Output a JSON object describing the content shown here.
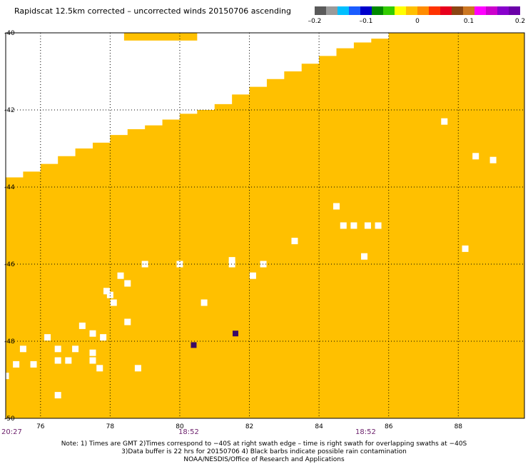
{
  "title": "Rapidscat 12.5km corrected – uncorrected winds 20150706 ascending",
  "colorbar": {
    "swatches": [
      "#5a5a5a",
      "#9a9a9a",
      "#00bfff",
      "#1a5cff",
      "#0000cc",
      "#008800",
      "#33cc00",
      "#ffff00",
      "#ffc000",
      "#ff8c00",
      "#ff3300",
      "#e8001c",
      "#8b4513",
      "#cc7722",
      "#ff00ff",
      "#cc00cc",
      "#8800cc",
      "#6a00a8"
    ],
    "labels": [
      "–0.2",
      "–0.1",
      "0",
      "0.1",
      "0.2"
    ]
  },
  "colors": {
    "land_mask": "#ffffff",
    "wind_fill": "#ffc000",
    "grid": "#000000",
    "anomaly": "#3a0a66"
  },
  "axes": {
    "x_ticks": [
      "76",
      "78",
      "80",
      "82",
      "84",
      "86",
      "88"
    ],
    "y_ticks": [
      "-40",
      "-42",
      "-44",
      "-46",
      "-48",
      "-50"
    ],
    "x_range": [
      75.0,
      89.9
    ],
    "y_range": [
      -50,
      -40
    ],
    "grid": true
  },
  "map_data": {
    "swath_edge_deg": [
      {
        "lon": 75.0,
        "lat": -43.75
      },
      {
        "lon": 75.5,
        "lat": -43.6
      },
      {
        "lon": 76.0,
        "lat": -43.4
      },
      {
        "lon": 76.5,
        "lat": -43.2
      },
      {
        "lon": 77.0,
        "lat": -43.0
      },
      {
        "lon": 77.5,
        "lat": -42.85
      },
      {
        "lon": 78.0,
        "lat": -42.65
      },
      {
        "lon": 78.5,
        "lat": -42.5
      },
      {
        "lon": 79.0,
        "lat": -42.4
      },
      {
        "lon": 79.5,
        "lat": -42.25
      },
      {
        "lon": 80.0,
        "lat": -42.1
      },
      {
        "lon": 80.5,
        "lat": -42.0
      },
      {
        "lon": 81.0,
        "lat": -41.85
      },
      {
        "lon": 81.5,
        "lat": -41.6
      },
      {
        "lon": 82.0,
        "lat": -41.4
      },
      {
        "lon": 82.5,
        "lat": -41.2
      },
      {
        "lon": 83.0,
        "lat": -41.0
      },
      {
        "lon": 83.5,
        "lat": -40.8
      },
      {
        "lon": 84.0,
        "lat": -40.6
      },
      {
        "lon": 84.5,
        "lat": -40.4
      },
      {
        "lon": 85.0,
        "lat": -40.25
      },
      {
        "lon": 85.5,
        "lat": -40.15
      },
      {
        "lon": 86.0,
        "lat": -40.0
      }
    ],
    "top_strip_lon": [
      78.4,
      80.5
    ],
    "rain_flag_cells": [
      [
        88.5,
        -43.2
      ],
      [
        89.0,
        -43.3
      ],
      [
        87.6,
        -42.3
      ],
      [
        84.5,
        -44.5
      ],
      [
        84.7,
        -45.0
      ],
      [
        85.0,
        -45.0
      ],
      [
        85.4,
        -45.0
      ],
      [
        85.7,
        -45.0
      ],
      [
        85.3,
        -45.8
      ],
      [
        83.3,
        -45.4
      ],
      [
        88.2,
        -45.6
      ],
      [
        79.0,
        -46.0
      ],
      [
        80.0,
        -46.0
      ],
      [
        81.5,
        -45.9
      ],
      [
        81.5,
        -46.0
      ],
      [
        82.4,
        -46.0
      ],
      [
        82.1,
        -46.3
      ],
      [
        78.3,
        -46.3
      ],
      [
        78.5,
        -46.5
      ],
      [
        78.0,
        -46.8
      ],
      [
        78.1,
        -47.0
      ],
      [
        77.9,
        -46.7
      ],
      [
        80.7,
        -47.0
      ],
      [
        78.5,
        -47.5
      ],
      [
        76.2,
        -47.9
      ],
      [
        76.5,
        -48.2
      ],
      [
        77.2,
        -47.6
      ],
      [
        77.5,
        -47.8
      ],
      [
        77.8,
        -47.9
      ],
      [
        77.0,
        -48.2
      ],
      [
        76.8,
        -48.5
      ],
      [
        76.5,
        -48.5
      ],
      [
        77.5,
        -48.5
      ],
      [
        77.7,
        -48.7
      ],
      [
        77.5,
        -48.3
      ],
      [
        75.5,
        -48.2
      ],
      [
        75.3,
        -48.6
      ],
      [
        75.8,
        -48.6
      ],
      [
        75.0,
        -48.9
      ],
      [
        78.8,
        -48.7
      ],
      [
        76.5,
        -49.4
      ]
    ],
    "anomaly_cells": [
      [
        80.4,
        -48.1
      ],
      [
        81.6,
        -47.8
      ]
    ]
  },
  "time_labels": [
    {
      "text": "20:27",
      "color": "#6b1f6b"
    },
    {
      "text": "18:52",
      "color": "#6b1f6b"
    },
    {
      "text": "18:52",
      "color": "#6b1f6b"
    }
  ],
  "notes": [
    "Note: 1) Times are GMT 2)Times correspond to −40S at right swath edge – time is right swath for overlapping swaths at −40S",
    "3)Data buffer is 22 hrs for 20150706 4) Black barbs indicate possible rain contamination",
    "NOAA/NESDIS/Office of Research and Applications"
  ]
}
